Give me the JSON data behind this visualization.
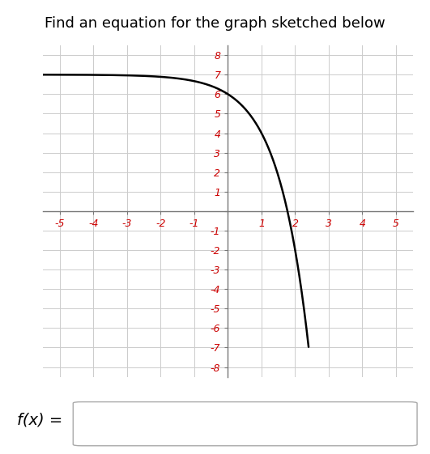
{
  "title": "Find an equation for the graph sketched below",
  "title_fontsize": 13,
  "title_color": "#000000",
  "background_color": "#ffffff",
  "grid_color": "#cccccc",
  "axis_color": "#777777",
  "curve_color": "#000000",
  "curve_linewidth": 1.8,
  "xlim": [
    -5.5,
    5.5
  ],
  "ylim": [
    -8.5,
    8.5
  ],
  "tick_fontsize": 9,
  "tick_color_x": "#cc0000",
  "tick_color_y": "#cc0000",
  "func_label": "f(x) =",
  "func_label_fontsize": 14,
  "x_range_min": -5.5,
  "x_range_max": 2.4,
  "func_a": 7,
  "func_base": 3
}
